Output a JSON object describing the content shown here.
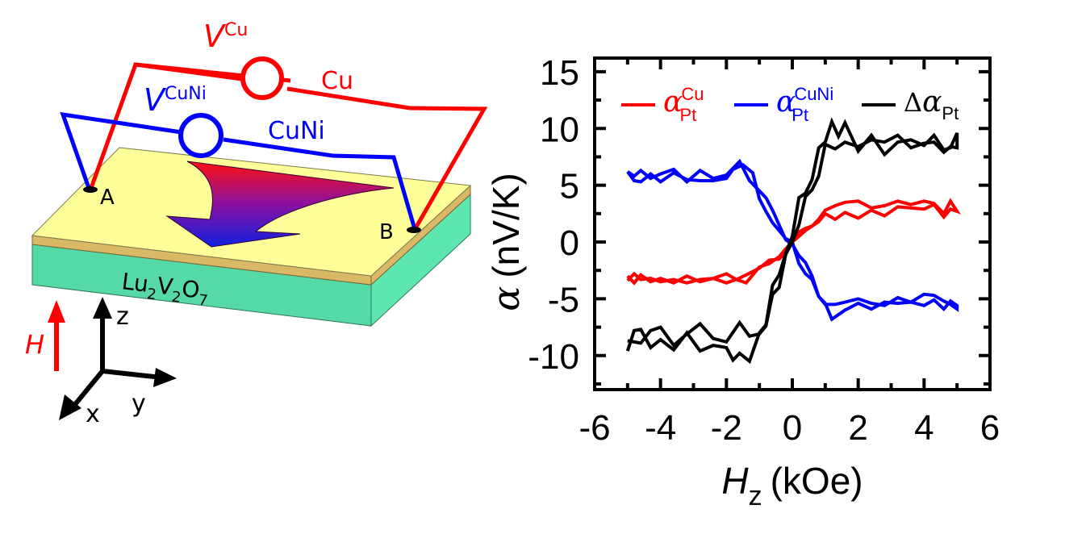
{
  "schematic": {
    "voltmeter_cu": {
      "symbol": "V",
      "superscript": "Cu",
      "wire_label": "Cu",
      "color": "#ff0000"
    },
    "voltmeter_cuni": {
      "symbol": "V",
      "superscript": "CuNi",
      "wire_label": "CuNi",
      "color": "#0000ff"
    },
    "contact_a": "A",
    "contact_b": "B",
    "substrate": {
      "base": "Lu",
      "sub1": "2",
      "mid": "V",
      "sub2": "2",
      "end": "O",
      "sub3": "7"
    },
    "field_label": "H",
    "axes": {
      "z": "z",
      "y": "y",
      "x": "x"
    },
    "colors": {
      "film_top": "#ffff99",
      "film_edge": "#d9b866",
      "substrate": "#55d9a6",
      "substrate_side": "#5ee6b0"
    }
  },
  "chart_data": {
    "type": "line",
    "title": "",
    "xlabel": {
      "symbol": "H",
      "subscript": "z",
      "unit": "(kOe)"
    },
    "ylabel": {
      "symbol": "α",
      "unit": "(nV/K)"
    },
    "xlim": [
      -6,
      6
    ],
    "ylim": [
      -13,
      16.2
    ],
    "xticks": [
      -6,
      -4,
      -2,
      0,
      2,
      4,
      6
    ],
    "yticks": [
      -10,
      -5,
      0,
      5,
      10,
      15
    ],
    "xticklabels": [
      "-6",
      "-4",
      "-2",
      "0",
      "2",
      "4",
      "6"
    ],
    "yticklabels": [
      "-10",
      "-5",
      "0",
      "5",
      "10",
      "15"
    ],
    "grid": false,
    "legend_position": "top",
    "series": [
      {
        "name": "α_Pt^Cu",
        "legend": {
          "symbol": "α",
          "sub": "Pt",
          "sup": "Cu",
          "prefix": ""
        },
        "color": "#ff0000",
        "x": [
          -5.0,
          -4.8,
          -4.6,
          -4.3,
          -4.0,
          -3.6,
          -3.2,
          -2.8,
          -2.4,
          -2.0,
          -1.7,
          -1.4,
          -1.0,
          -0.7,
          -0.4,
          -0.2,
          0.0,
          0.2,
          0.4,
          0.6,
          0.8,
          1.0,
          1.3,
          1.6,
          2.0,
          2.4,
          2.8,
          3.2,
          3.6,
          4.0,
          4.3,
          4.6,
          4.8,
          5.0,
          5.0,
          4.8,
          4.6,
          4.3,
          4.0,
          3.6,
          3.2,
          2.8,
          2.4,
          2.0,
          1.6,
          1.3,
          1.0,
          0.8,
          0.6,
          0.4,
          0.2,
          0.0,
          -0.2,
          -0.4,
          -0.7,
          -1.0,
          -1.4,
          -1.7,
          -2.0,
          -2.4,
          -2.8,
          -3.2,
          -3.6,
          -4.0,
          -4.3,
          -4.6,
          -4.8,
          -5.0
        ],
        "y": [
          -3.0,
          -3.6,
          -2.9,
          -3.5,
          -3.2,
          -3.6,
          -3.0,
          -3.5,
          -3.2,
          -2.8,
          -3.3,
          -2.9,
          -2.3,
          -1.6,
          -1.5,
          -0.9,
          0.2,
          0.9,
          1.2,
          1.4,
          2.0,
          2.8,
          3.2,
          3.5,
          3.6,
          3.0,
          3.2,
          3.6,
          3.3,
          3.6,
          3.4,
          2.5,
          3.6,
          2.7,
          2.7,
          2.9,
          2.2,
          3.3,
          2.9,
          3.0,
          3.1,
          2.3,
          2.8,
          2.1,
          2.6,
          2.0,
          2.5,
          1.8,
          1.4,
          1.0,
          0.5,
          0.0,
          -0.6,
          -1.3,
          -1.9,
          -2.2,
          -3.6,
          -3.3,
          -3.6,
          -3.2,
          -3.3,
          -3.6,
          -3.3,
          -3.5,
          -3.2,
          -3.3,
          -2.8,
          -3.4
        ]
      },
      {
        "name": "α_Pt^CuNi",
        "legend": {
          "symbol": "α",
          "sub": "Pt",
          "sup": "CuNi",
          "prefix": ""
        },
        "color": "#0000ff",
        "x": [
          -5.0,
          -4.8,
          -4.6,
          -4.3,
          -4.0,
          -3.6,
          -3.2,
          -2.8,
          -2.4,
          -2.0,
          -1.8,
          -1.5,
          -1.2,
          -1.0,
          -0.8,
          -0.6,
          -0.4,
          -0.2,
          0.0,
          0.2,
          0.4,
          0.6,
          0.8,
          1.0,
          1.3,
          1.6,
          2.0,
          2.4,
          2.8,
          3.2,
          3.6,
          4.0,
          4.3,
          4.6,
          4.8,
          5.0,
          5.0,
          4.8,
          4.6,
          4.3,
          4.0,
          3.6,
          3.2,
          2.8,
          2.4,
          2.0,
          1.6,
          1.2,
          1.0,
          0.8,
          0.6,
          0.4,
          0.2,
          0.0,
          -0.2,
          -0.4,
          -0.6,
          -0.8,
          -1.0,
          -1.3,
          -1.6,
          -2.0,
          -2.4,
          -2.8,
          -3.2,
          -3.6,
          -4.0,
          -4.3,
          -4.6,
          -4.8,
          -5.0
        ],
        "y": [
          6.2,
          5.4,
          5.3,
          6.0,
          5.3,
          6.1,
          5.5,
          5.4,
          5.4,
          5.6,
          6.4,
          6.8,
          6.1,
          3.8,
          2.7,
          1.7,
          1.0,
          0.3,
          0.0,
          -1.9,
          -2.8,
          -3.3,
          -4.8,
          -5.5,
          -5.5,
          -5.3,
          -5.0,
          -5.4,
          -5.6,
          -4.9,
          -5.3,
          -4.6,
          -4.7,
          -5.2,
          -5.5,
          -5.9,
          -5.6,
          -5.2,
          -5.9,
          -5.1,
          -5.6,
          -5.3,
          -5.4,
          -5.3,
          -5.9,
          -5.4,
          -6.0,
          -6.8,
          -5.4,
          -4.8,
          -3.0,
          -1.8,
          -1.2,
          -0.2,
          0.2,
          1.5,
          2.8,
          3.9,
          4.5,
          5.4,
          7.1,
          5.9,
          5.6,
          6.3,
          5.3,
          6.4,
          6.0,
          5.6,
          6.3,
          5.8,
          6.2
        ]
      },
      {
        "name": "Δα_Pt",
        "legend": {
          "symbol": "α",
          "sub": "Pt",
          "sup": "",
          "prefix": "Δ"
        },
        "color": "#000000",
        "x": [
          -5.0,
          -4.8,
          -4.6,
          -4.3,
          -4.0,
          -3.6,
          -3.2,
          -2.8,
          -2.4,
          -2.0,
          -1.8,
          -1.6,
          -1.3,
          -1.0,
          -0.8,
          -0.6,
          -0.4,
          -0.2,
          0.0,
          0.2,
          0.4,
          0.6,
          0.8,
          1.0,
          1.2,
          1.4,
          1.6,
          2.0,
          2.4,
          2.8,
          3.2,
          3.6,
          4.0,
          4.3,
          4.6,
          4.8,
          5.0,
          5.0,
          4.8,
          4.6,
          4.3,
          4.0,
          3.6,
          3.2,
          2.8,
          2.4,
          2.0,
          1.6,
          1.3,
          1.0,
          0.8,
          0.6,
          0.4,
          0.2,
          0.0,
          -0.2,
          -0.4,
          -0.6,
          -0.8,
          -1.0,
          -1.3,
          -1.6,
          -2.0,
          -2.4,
          -2.8,
          -3.2,
          -3.6,
          -4.0,
          -4.3,
          -4.6,
          -4.8,
          -5.0
        ],
        "y": [
          -9.6,
          -7.8,
          -7.7,
          -9.3,
          -8.6,
          -9.5,
          -8.0,
          -9.6,
          -9.1,
          -9.3,
          -10.4,
          -9.8,
          -10.5,
          -8.0,
          -7.3,
          -3.8,
          -2.9,
          -1.0,
          0.5,
          3.9,
          4.3,
          5.5,
          8.3,
          8.8,
          10.6,
          9.3,
          10.5,
          8.0,
          9.4,
          7.7,
          8.8,
          9.0,
          8.5,
          9.4,
          8.1,
          8.3,
          9.6,
          8.3,
          8.4,
          7.9,
          8.8,
          8.7,
          8.3,
          9.4,
          8.8,
          9.0,
          8.4,
          8.8,
          8.2,
          8.6,
          5.8,
          4.6,
          4.0,
          1.5,
          0.0,
          -1.1,
          -4.0,
          -4.6,
          -7.4,
          -8.1,
          -8.3,
          -7.1,
          -8.8,
          -8.5,
          -7.2,
          -8.1,
          -9.1,
          -7.5,
          -7.8,
          -8.9,
          -8.8,
          -8.7
        ]
      }
    ]
  }
}
